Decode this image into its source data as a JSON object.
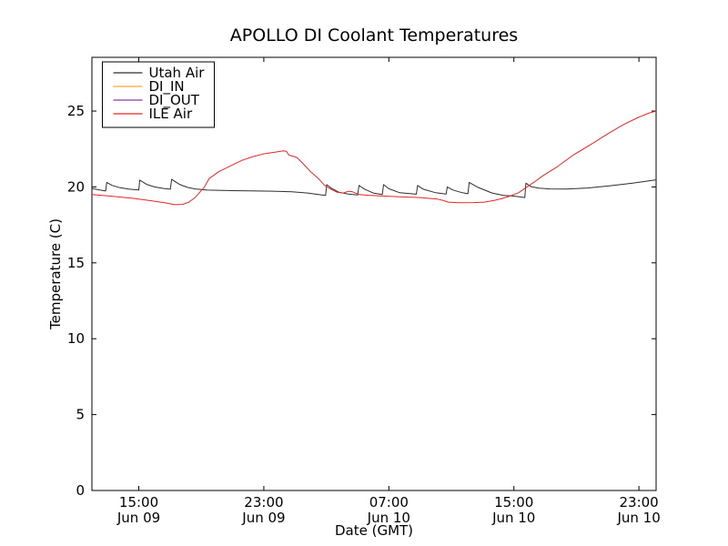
{
  "figure": {
    "background": "#ffffff",
    "axis_color": "#000000",
    "text_color": "#000000"
  },
  "chart_data": {
    "type": "line",
    "title": "APOLLO DI Coolant Temperatures",
    "xlabel": "Date (GMT)",
    "ylabel": "Temperature (C)",
    "grid": false,
    "x_unit": "hours since first sample (approx Jun 09 12:00 GMT)",
    "xlim": [
      0,
      36.1
    ],
    "ylim": [
      0,
      28.54
    ],
    "yticks": [
      {
        "value": 0,
        "label": "0"
      },
      {
        "value": 5,
        "label": "5"
      },
      {
        "value": 10,
        "label": "10"
      },
      {
        "value": 15,
        "label": "15"
      },
      {
        "value": 20,
        "label": "20"
      },
      {
        "value": 25,
        "label": "25"
      }
    ],
    "xticks": [
      {
        "value": 3.0,
        "time": "15:00",
        "date": "Jun 09"
      },
      {
        "value": 11.0,
        "time": "23:00",
        "date": "Jun 09"
      },
      {
        "value": 19.0,
        "time": "07:00",
        "date": "Jun 10"
      },
      {
        "value": 27.0,
        "time": "15:00",
        "date": "Jun 10"
      },
      {
        "value": 35.0,
        "time": "23:00",
        "date": "Jun 10"
      }
    ],
    "legend": {
      "position": "upper-left",
      "background": "#ffffff",
      "border_color": "#000000",
      "entries": [
        {
          "label": "Utah Air",
          "color": "#2e2e2e"
        },
        {
          "label": "DI_IN",
          "color": "#ffa733"
        },
        {
          "label": "DI_OUT",
          "color": "#8e37a8"
        },
        {
          "label": "ILE Air",
          "color": "#e62525"
        }
      ]
    },
    "series": [
      {
        "name": "Utah Air",
        "color": "#2e2e2e",
        "points": [
          [
            0,
            19.9
          ],
          [
            0.5,
            19.8
          ],
          [
            0.88,
            19.73
          ],
          [
            0.95,
            20.3
          ],
          [
            1.3,
            20.1
          ],
          [
            1.8,
            19.95
          ],
          [
            2.4,
            19.85
          ],
          [
            3.0,
            19.8
          ],
          [
            3.06,
            20.45
          ],
          [
            3.5,
            20.17
          ],
          [
            4.0,
            20.0
          ],
          [
            4.6,
            19.9
          ],
          [
            5.02,
            19.85
          ],
          [
            5.1,
            20.5
          ],
          [
            5.6,
            20.17
          ],
          [
            6.1,
            19.97
          ],
          [
            6.6,
            19.87
          ],
          [
            7.4,
            19.79
          ],
          [
            8.7,
            19.76
          ],
          [
            10.1,
            19.74
          ],
          [
            11.6,
            19.72
          ],
          [
            12.8,
            19.68
          ],
          [
            13.8,
            19.6
          ],
          [
            14.5,
            19.5
          ],
          [
            14.95,
            19.44
          ],
          [
            15.02,
            20.15
          ],
          [
            15.35,
            19.9
          ],
          [
            15.8,
            19.65
          ],
          [
            16.4,
            19.53
          ],
          [
            17.0,
            19.47
          ],
          [
            17.09,
            20.1
          ],
          [
            17.45,
            19.85
          ],
          [
            18.0,
            19.6
          ],
          [
            18.58,
            19.5
          ],
          [
            18.66,
            20.15
          ],
          [
            19.0,
            19.88
          ],
          [
            19.7,
            19.62
          ],
          [
            20.76,
            19.52
          ],
          [
            20.84,
            20.1
          ],
          [
            21.2,
            19.85
          ],
          [
            22.0,
            19.62
          ],
          [
            22.66,
            19.53
          ],
          [
            22.74,
            20.0
          ],
          [
            23.1,
            19.8
          ],
          [
            23.7,
            19.62
          ],
          [
            24.06,
            19.55
          ],
          [
            24.14,
            20.3
          ],
          [
            24.7,
            19.97
          ],
          [
            25.6,
            19.6
          ],
          [
            26.3,
            19.45
          ],
          [
            26.9,
            19.4
          ],
          [
            27.4,
            19.34
          ],
          [
            27.7,
            19.3
          ],
          [
            27.77,
            20.25
          ],
          [
            28.1,
            20.02
          ],
          [
            28.6,
            19.92
          ],
          [
            29.3,
            19.87
          ],
          [
            30.3,
            19.86
          ],
          [
            31.7,
            19.93
          ],
          [
            33.1,
            20.07
          ],
          [
            34.6,
            20.25
          ],
          [
            35.8,
            20.42
          ],
          [
            36.1,
            20.47
          ]
        ]
      },
      {
        "name": "DI_IN",
        "color": "#ffa733",
        "points": []
      },
      {
        "name": "DI_OUT",
        "color": "#8e37a8",
        "points": []
      },
      {
        "name": "ILE Air",
        "color": "#e62525",
        "points": [
          [
            0,
            19.5
          ],
          [
            1.1,
            19.4
          ],
          [
            2.6,
            19.25
          ],
          [
            3.7,
            19.1
          ],
          [
            4.7,
            18.95
          ],
          [
            5.3,
            18.83
          ],
          [
            5.8,
            18.85
          ],
          [
            6.2,
            19.0
          ],
          [
            6.6,
            19.3
          ],
          [
            6.9,
            19.65
          ],
          [
            7.2,
            20.0
          ],
          [
            7.5,
            20.55
          ],
          [
            8.1,
            21.0
          ],
          [
            8.8,
            21.35
          ],
          [
            9.6,
            21.75
          ],
          [
            10.3,
            22.0
          ],
          [
            11.1,
            22.2
          ],
          [
            11.9,
            22.32
          ],
          [
            12.25,
            22.38
          ],
          [
            12.45,
            22.34
          ],
          [
            12.6,
            22.1
          ],
          [
            13.1,
            21.95
          ],
          [
            13.5,
            21.55
          ],
          [
            14.0,
            21.0
          ],
          [
            14.5,
            20.55
          ],
          [
            14.9,
            20.1
          ],
          [
            15.3,
            19.85
          ],
          [
            15.7,
            19.65
          ],
          [
            16.1,
            19.6
          ],
          [
            16.4,
            19.72
          ],
          [
            16.7,
            19.67
          ],
          [
            17.1,
            19.5
          ],
          [
            17.7,
            19.45
          ],
          [
            18.6,
            19.4
          ],
          [
            19.7,
            19.35
          ],
          [
            21.0,
            19.3
          ],
          [
            22.1,
            19.2
          ],
          [
            22.5,
            19.1
          ],
          [
            22.8,
            19.0
          ],
          [
            23.5,
            18.96
          ],
          [
            24.4,
            18.97
          ],
          [
            25.1,
            19.0
          ],
          [
            25.7,
            19.1
          ],
          [
            26.2,
            19.22
          ],
          [
            26.8,
            19.42
          ],
          [
            27.3,
            19.62
          ],
          [
            27.8,
            19.98
          ],
          [
            28.3,
            20.32
          ],
          [
            28.8,
            20.7
          ],
          [
            29.8,
            21.35
          ],
          [
            30.8,
            22.1
          ],
          [
            32.0,
            22.85
          ],
          [
            33.0,
            23.5
          ],
          [
            34.0,
            24.1
          ],
          [
            34.9,
            24.55
          ],
          [
            35.6,
            24.85
          ],
          [
            36.1,
            25.0
          ]
        ]
      }
    ]
  }
}
